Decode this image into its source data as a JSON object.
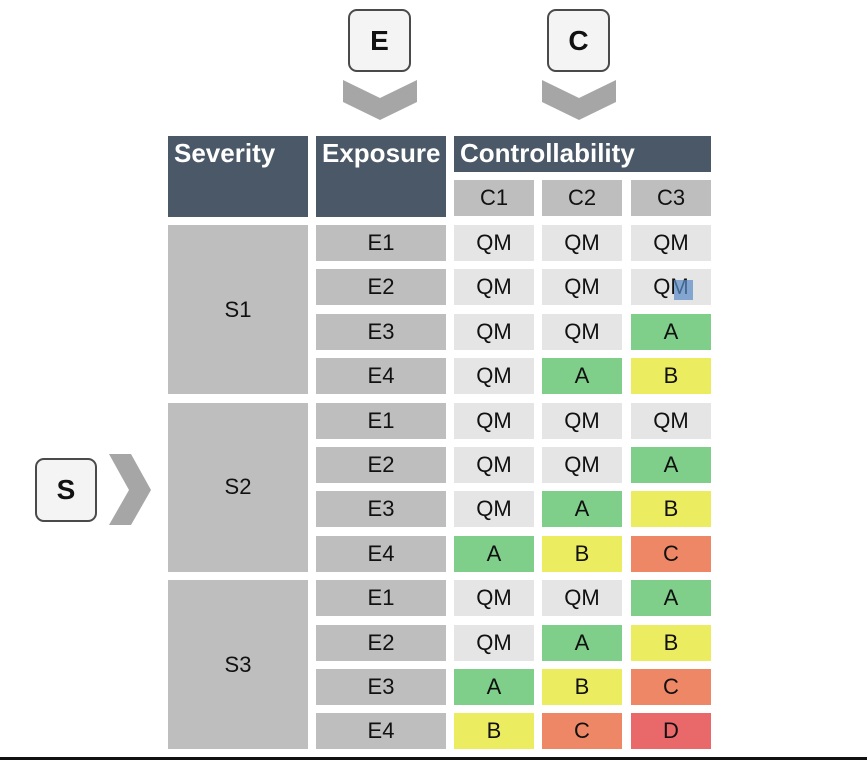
{
  "indicators": {
    "e": "E",
    "c": "C",
    "s": "S"
  },
  "headers": {
    "severity": "Severity",
    "exposure": "Exposure",
    "controllability": "Controllability"
  },
  "controllability_levels": [
    "C1",
    "C2",
    "C3"
  ],
  "colors": {
    "QM": "#e5e5e5",
    "A": "#7fcf8a",
    "B": "#ecec60",
    "C": "#ee8766",
    "D": "#e9686a",
    "header": "#4a5868",
    "label": "#bebebe"
  },
  "severity_groups": [
    {
      "label": "S1",
      "rows": [
        {
          "exposure": "E1",
          "values": [
            "QM",
            "QM",
            "QM"
          ]
        },
        {
          "exposure": "E2",
          "values": [
            "QM",
            "QM",
            "QM"
          ]
        },
        {
          "exposure": "E3",
          "values": [
            "QM",
            "QM",
            "A"
          ]
        },
        {
          "exposure": "E4",
          "values": [
            "QM",
            "A",
            "B"
          ]
        }
      ]
    },
    {
      "label": "S2",
      "rows": [
        {
          "exposure": "E1",
          "values": [
            "QM",
            "QM",
            "QM"
          ]
        },
        {
          "exposure": "E2",
          "values": [
            "QM",
            "QM",
            "A"
          ]
        },
        {
          "exposure": "E3",
          "values": [
            "QM",
            "A",
            "B"
          ]
        },
        {
          "exposure": "E4",
          "values": [
            "A",
            "B",
            "C"
          ]
        }
      ]
    },
    {
      "label": "S3",
      "rows": [
        {
          "exposure": "E1",
          "values": [
            "QM",
            "QM",
            "A"
          ]
        },
        {
          "exposure": "E2",
          "values": [
            "QM",
            "A",
            "B"
          ]
        },
        {
          "exposure": "E3",
          "values": [
            "A",
            "B",
            "C"
          ]
        },
        {
          "exposure": "E4",
          "values": [
            "B",
            "C",
            "D"
          ]
        }
      ]
    }
  ]
}
